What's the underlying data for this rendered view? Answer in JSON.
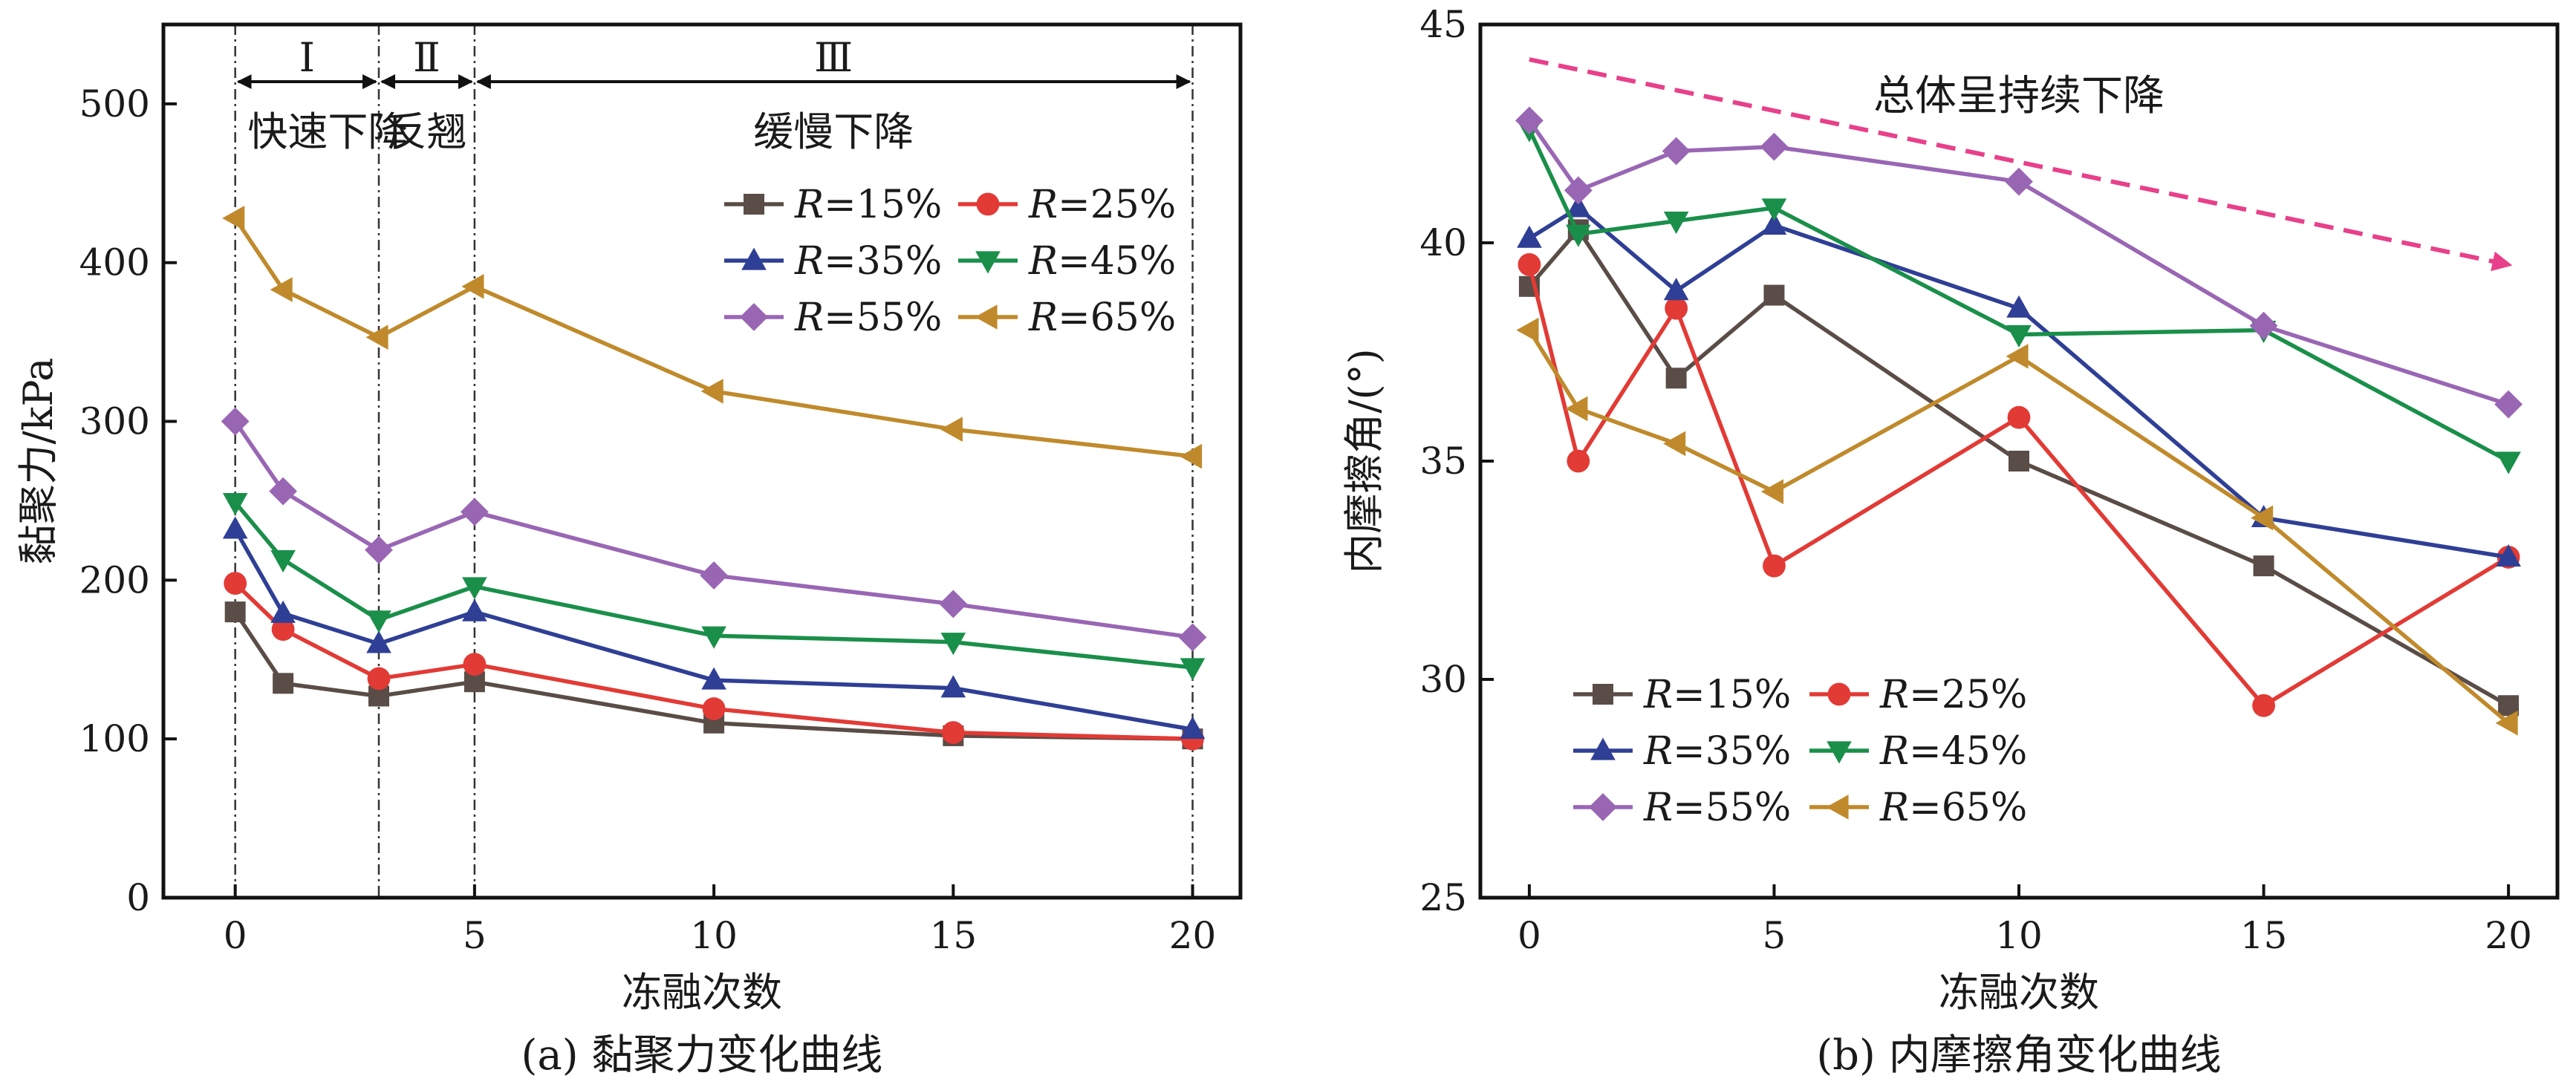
{
  "colors": {
    "R=15%": "#5a4c46",
    "R=25%": "#e23a35",
    "R=35%": "#2f3f95",
    "R=45%": "#1a8f4a",
    "R=55%": "#9966b4",
    "R=65%": "#c08a2c",
    "trend": "#e8408a"
  },
  "chart_data": [
    {
      "type": "line",
      "caption": "(a) 黏聚力变化曲线",
      "xlabel": "冻融次数",
      "ylabel": "黏聚力/kPa",
      "xlim": [
        -1.5,
        21
      ],
      "ylim": [
        0,
        550
      ],
      "xticks": [
        0,
        5,
        10,
        15,
        20
      ],
      "yticks": [
        0,
        100,
        200,
        300,
        400,
        500
      ],
      "x": [
        0,
        1,
        3,
        5,
        10,
        15,
        20
      ],
      "legend_placement": "top-right",
      "series": [
        {
          "name": "R=15%",
          "marker": "square",
          "values": [
            180,
            135,
            127,
            136,
            110,
            102,
            100
          ]
        },
        {
          "name": "R=25%",
          "marker": "circle",
          "values": [
            198,
            169,
            138,
            147,
            119,
            104,
            100
          ]
        },
        {
          "name": "R=35%",
          "marker": "triangle-up",
          "values": [
            232,
            179,
            160,
            180,
            137,
            132,
            106
          ]
        },
        {
          "name": "R=45%",
          "marker": "triangle-down",
          "values": [
            249,
            213,
            175,
            196,
            165,
            161,
            145
          ]
        },
        {
          "name": "R=55%",
          "marker": "diamond",
          "values": [
            300,
            256,
            219,
            243,
            203,
            185,
            164
          ]
        },
        {
          "name": "R=65%",
          "marker": "triangle-left",
          "values": [
            428,
            383,
            353,
            385,
            319,
            295,
            278
          ]
        }
      ],
      "phase_lines": [
        0,
        3,
        5,
        20
      ],
      "phases": [
        {
          "numeral": "Ⅰ",
          "label": "快速下降",
          "from": 0,
          "to": 3
        },
        {
          "numeral": "Ⅱ",
          "label": "反翘",
          "from": 3,
          "to": 5
        },
        {
          "numeral": "Ⅲ",
          "label": "缓慢下降",
          "from": 5,
          "to": 20
        }
      ],
      "grid": false
    },
    {
      "type": "line",
      "caption": "(b) 内摩擦角变化曲线",
      "xlabel": "冻融次数",
      "ylabel": "内摩擦角/(°)",
      "xlim": [
        -1,
        21
      ],
      "ylim": [
        25,
        45
      ],
      "xticks": [
        0,
        5,
        10,
        15,
        20
      ],
      "yticks": [
        25,
        30,
        35,
        40,
        45
      ],
      "x": [
        0,
        1,
        3,
        5,
        10,
        15,
        20
      ],
      "legend_placement": "bottom-left",
      "series": [
        {
          "name": "R=15%",
          "marker": "square",
          "values": [
            39.0,
            40.3,
            36.9,
            38.8,
            35.0,
            32.6,
            29.4
          ]
        },
        {
          "name": "R=25%",
          "marker": "circle",
          "values": [
            39.5,
            35.0,
            38.5,
            32.6,
            36.0,
            29.4,
            32.8
          ]
        },
        {
          "name": "R=35%",
          "marker": "triangle-up",
          "values": [
            40.1,
            40.8,
            38.9,
            40.4,
            38.5,
            33.7,
            32.8
          ]
        },
        {
          "name": "R=45%",
          "marker": "triangle-down",
          "values": [
            42.6,
            40.2,
            40.5,
            40.8,
            37.9,
            38.0,
            35.0
          ]
        },
        {
          "name": "R=55%",
          "marker": "diamond",
          "values": [
            42.8,
            41.2,
            42.1,
            42.2,
            41.4,
            38.1,
            36.3
          ]
        },
        {
          "name": "R=65%",
          "marker": "triangle-left",
          "values": [
            38.0,
            36.2,
            35.4,
            34.3,
            37.4,
            33.7,
            29.0
          ]
        }
      ],
      "trend": {
        "label": "总体呈持续下降",
        "from": [
          0,
          44.2
        ],
        "to": [
          20,
          39.5
        ]
      },
      "grid": false
    }
  ]
}
